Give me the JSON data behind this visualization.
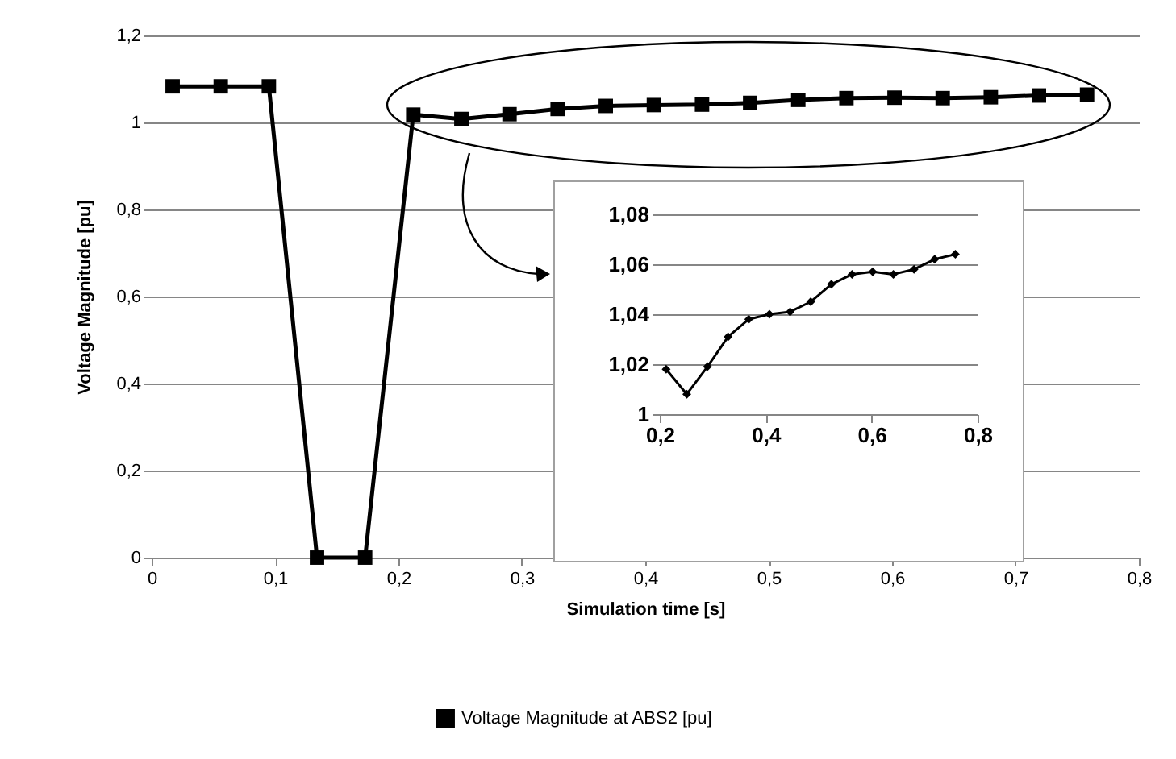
{
  "chart_data": [
    {
      "type": "line",
      "xlabel": "Simulation time [s]",
      "ylabel": "Voltage Magnitude [pu]",
      "x": [
        0.017,
        0.056,
        0.095,
        0.134,
        0.173,
        0.212,
        0.251,
        0.29,
        0.329,
        0.368,
        0.407,
        0.446,
        0.485,
        0.524,
        0.563,
        0.602,
        0.641,
        0.68,
        0.719,
        0.758
      ],
      "series": [
        {
          "name": "Voltage Magnitude  at ABS2 [pu]",
          "color": "#000000",
          "values": [
            1.083,
            1.083,
            1.083,
            0,
            0,
            1.018,
            1.008,
            1.019,
            1.031,
            1.038,
            1.04,
            1.041,
            1.045,
            1.052,
            1.056,
            1.057,
            1.056,
            1.058,
            1.062,
            1.064
          ]
        }
      ],
      "xlim": [
        0,
        0.8
      ],
      "xticks": [
        {
          "value": 0,
          "label": "0"
        },
        {
          "value": 0.1,
          "label": "0,1"
        },
        {
          "value": 0.2,
          "label": "0,2"
        },
        {
          "value": 0.3,
          "label": "0,3"
        },
        {
          "value": 0.4,
          "label": "0,4"
        },
        {
          "value": 0.5,
          "label": "0,5"
        },
        {
          "value": 0.6,
          "label": "0,6"
        },
        {
          "value": 0.7,
          "label": "0,7"
        },
        {
          "value": 0.8,
          "label": "0,8"
        }
      ],
      "ylim": [
        0,
        1.2
      ],
      "yticks": [
        {
          "value": 0,
          "label": "0"
        },
        {
          "value": 0.2,
          "label": "0,2"
        },
        {
          "value": 0.4,
          "label": "0,4"
        },
        {
          "value": 0.6,
          "label": "0,6"
        },
        {
          "value": 0.8,
          "label": "0,8"
        },
        {
          "value": 1,
          "label": "1"
        },
        {
          "value": 1.2,
          "label": "1,2"
        }
      ],
      "grid": "y",
      "legend": "bottom",
      "marker": "square"
    },
    {
      "type": "line",
      "x": [
        0.212,
        0.251,
        0.29,
        0.329,
        0.368,
        0.407,
        0.446,
        0.485,
        0.524,
        0.563,
        0.602,
        0.641,
        0.68,
        0.719,
        0.758
      ],
      "series": [
        {
          "color": "#000000",
          "values": [
            1.018,
            1.008,
            1.019,
            1.031,
            1.038,
            1.04,
            1.041,
            1.045,
            1.052,
            1.056,
            1.057,
            1.056,
            1.058,
            1.062,
            1.064
          ]
        }
      ],
      "xlim": [
        0.2,
        0.8
      ],
      "xticks": [
        {
          "value": 0.2,
          "label": "0,2"
        },
        {
          "value": 0.4,
          "label": "0,4"
        },
        {
          "value": 0.6,
          "label": "0,6"
        },
        {
          "value": 0.8,
          "label": "0,8"
        }
      ],
      "ylim": [
        1,
        1.08
      ],
      "yticks": [
        {
          "value": 1,
          "label": "1"
        },
        {
          "value": 1.02,
          "label": "1,02"
        },
        {
          "value": 1.04,
          "label": "1,04"
        },
        {
          "value": 1.06,
          "label": "1,06"
        },
        {
          "value": 1.08,
          "label": "1,08"
        }
      ],
      "grid": "y",
      "marker": "diamond"
    }
  ]
}
